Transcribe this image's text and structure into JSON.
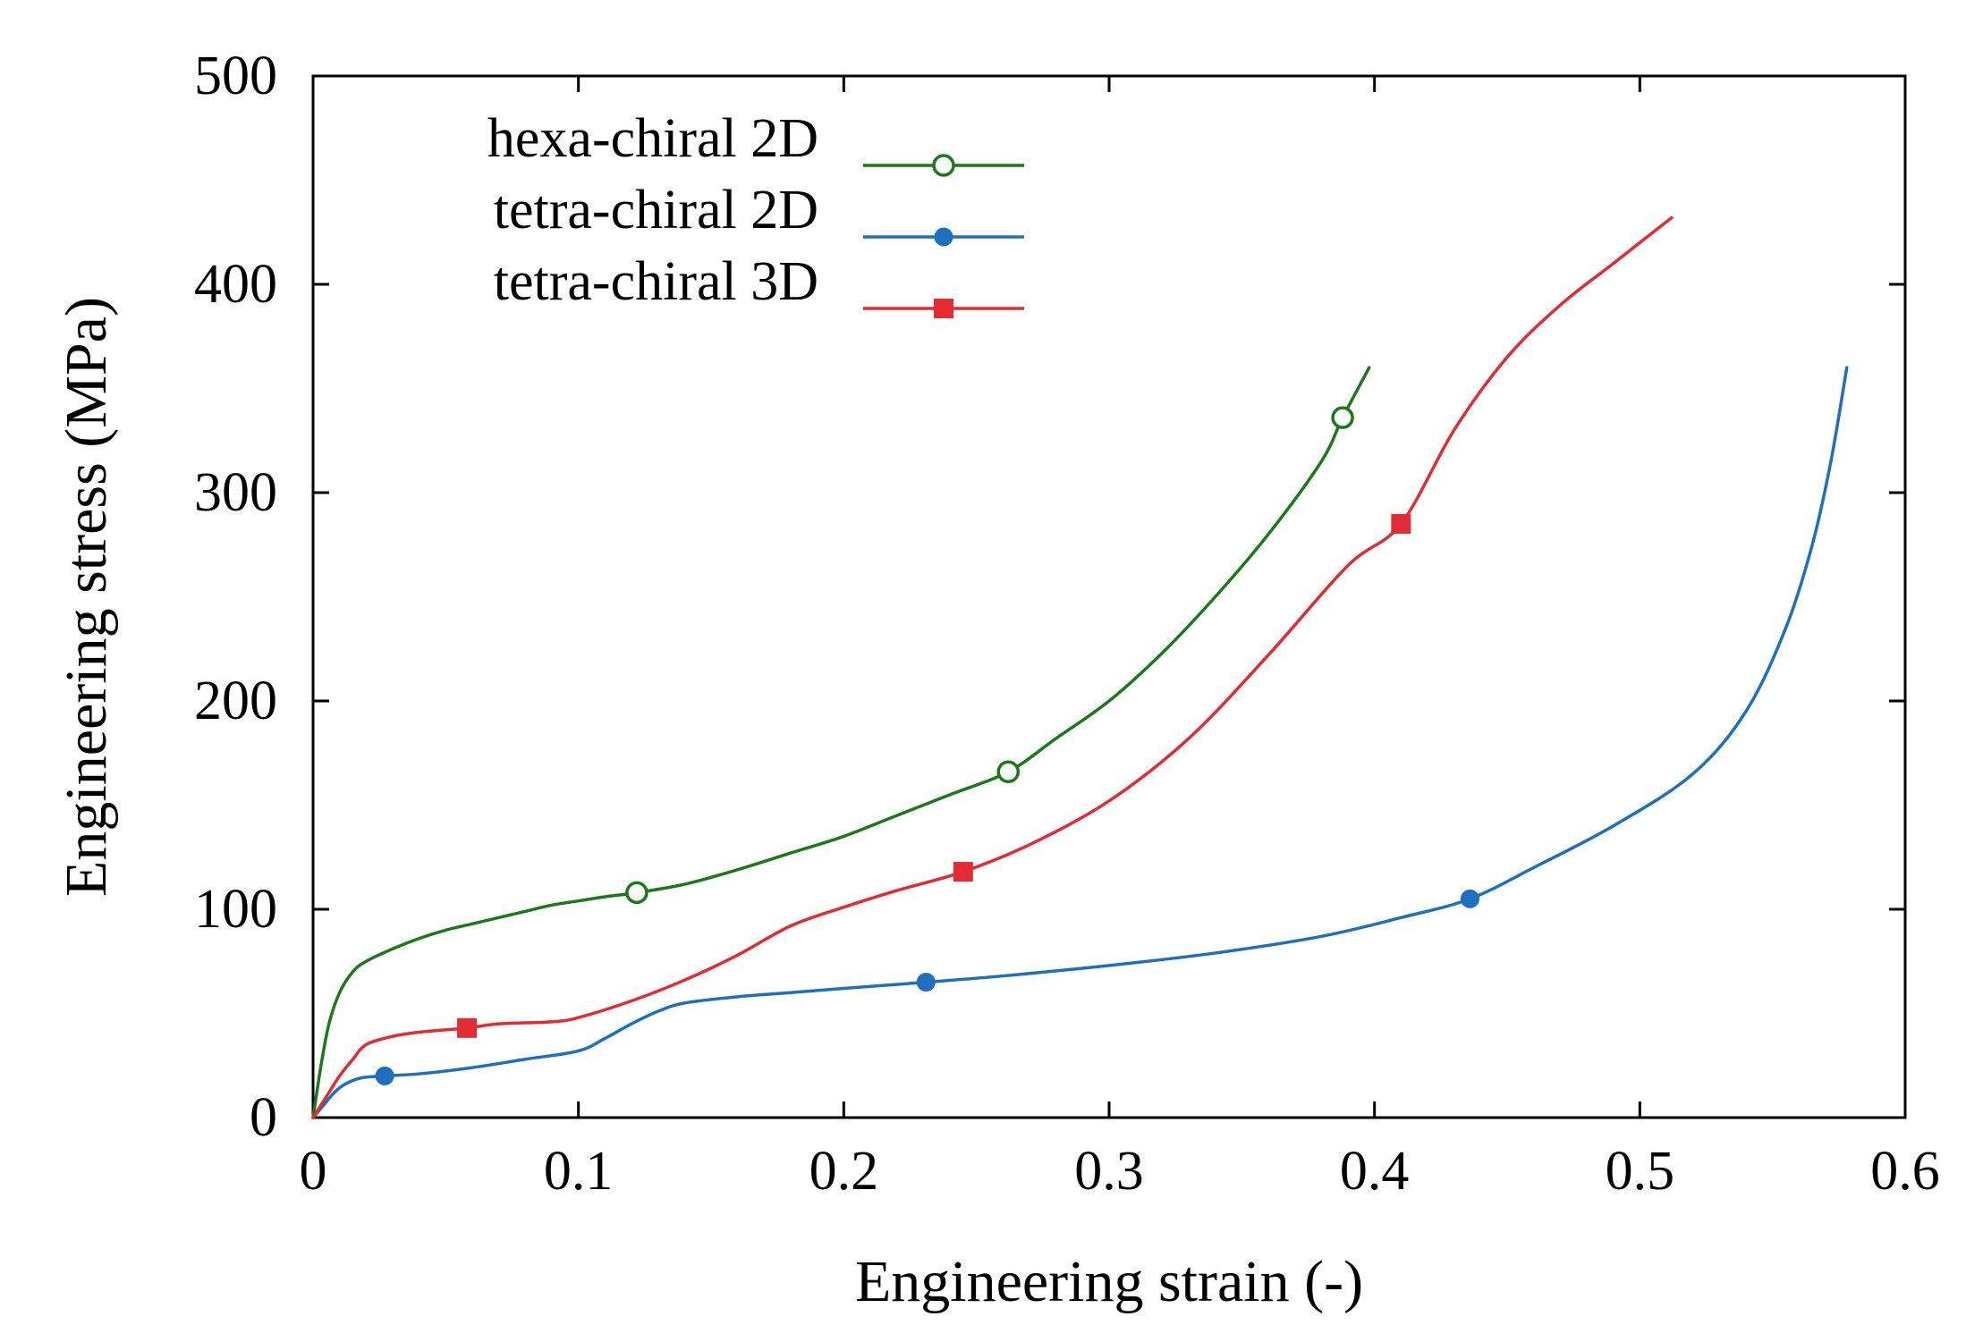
{
  "chart_data": {
    "type": "line",
    "title": "",
    "xlabel": "Engineering strain (-)",
    "ylabel": "Engineering stress (MPa)",
    "xlim": [
      0,
      0.6
    ],
    "ylim": [
      0,
      500
    ],
    "xticks": [
      0,
      0.1,
      0.2,
      0.3,
      0.4,
      0.5,
      0.6
    ],
    "xtick_labels": [
      "0",
      "0.1",
      "0.2",
      "0.3",
      "0.4",
      "0.5",
      "0.6"
    ],
    "yticks": [
      0,
      100,
      200,
      300,
      400,
      500
    ],
    "ytick_labels": [
      "0",
      "100",
      "200",
      "300",
      "400",
      "500"
    ],
    "grid": false,
    "legend_position": "top-left",
    "series": [
      {
        "name": "hexa-chiral 2D",
        "color": "#1a7a1a",
        "marker": "open-circle",
        "x": [
          0,
          0.003,
          0.006,
          0.01,
          0.015,
          0.02,
          0.03,
          0.04,
          0.05,
          0.06,
          0.07,
          0.08,
          0.09,
          0.1,
          0.11,
          0.122,
          0.14,
          0.16,
          0.18,
          0.2,
          0.22,
          0.24,
          0.262,
          0.28,
          0.3,
          0.32,
          0.34,
          0.36,
          0.38,
          0.388,
          0.398
        ],
        "y": [
          0,
          25,
          45,
          60,
          70,
          75,
          81,
          86,
          90,
          93,
          96,
          99,
          102,
          104,
          106,
          108,
          112,
          119,
          127,
          135,
          145,
          155,
          166,
          182,
          200,
          223,
          250,
          280,
          315,
          336,
          360
        ],
        "marker_points": [
          [
            0.122,
            108
          ],
          [
            0.262,
            166
          ],
          [
            0.388,
            336
          ]
        ]
      },
      {
        "name": "tetra-chiral 2D",
        "color": "#1f6fc0",
        "marker": "filled-circle",
        "x": [
          0,
          0.004,
          0.008,
          0.012,
          0.018,
          0.027,
          0.04,
          0.06,
          0.08,
          0.1,
          0.11,
          0.12,
          0.13,
          0.14,
          0.16,
          0.18,
          0.2,
          0.231,
          0.26,
          0.3,
          0.34,
          0.38,
          0.41,
          0.436,
          0.46,
          0.49,
          0.52,
          0.54,
          0.555,
          0.565,
          0.572,
          0.578
        ],
        "y": [
          0,
          6,
          12,
          16,
          19,
          20,
          21,
          24,
          28,
          32,
          38,
          45,
          51,
          55,
          58,
          60,
          62,
          65,
          68,
          73,
          79,
          87,
          96,
          105,
          120,
          140,
          165,
          195,
          235,
          275,
          315,
          360
        ],
        "marker_points": [
          [
            0.027,
            20
          ],
          [
            0.231,
            65
          ],
          [
            0.436,
            105
          ]
        ]
      },
      {
        "name": "tetra-chiral 3D",
        "color": "#e32b35",
        "marker": "filled-square",
        "x": [
          0,
          0.005,
          0.01,
          0.015,
          0.02,
          0.03,
          0.04,
          0.058,
          0.07,
          0.09,
          0.1,
          0.12,
          0.14,
          0.16,
          0.18,
          0.2,
          0.22,
          0.245,
          0.27,
          0.3,
          0.33,
          0.36,
          0.39,
          0.41,
          0.43,
          0.45,
          0.47,
          0.49,
          0.512
        ],
        "y": [
          0,
          10,
          20,
          28,
          35,
          39,
          41,
          43,
          45,
          46,
          48,
          56,
          66,
          78,
          92,
          101,
          109,
          118,
          131,
          152,
          182,
          222,
          265,
          285,
          330,
          365,
          390,
          410,
          432
        ],
        "marker_points": [
          [
            0.058,
            43
          ],
          [
            0.245,
            118
          ],
          [
            0.41,
            285
          ]
        ]
      }
    ]
  }
}
